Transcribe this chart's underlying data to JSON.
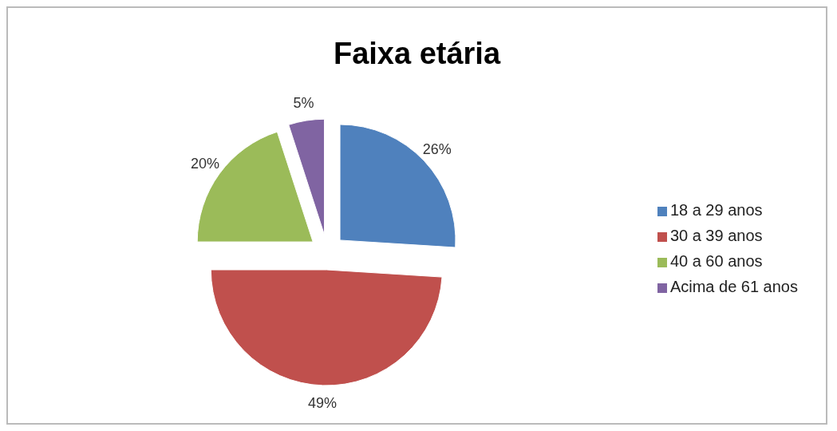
{
  "chart_data": {
    "type": "pie",
    "title": "Faixa etária",
    "categories": [
      "18 a 29 anos",
      "30 a 39 anos",
      "40 a 60 anos",
      "Acima de 61 anos"
    ],
    "values": [
      26,
      49,
      20,
      5
    ],
    "colors": [
      "#4f81bd",
      "#c0504d",
      "#9bbb59",
      "#8064a2"
    ],
    "value_labels": [
      "26%",
      "49%",
      "20%",
      "5%"
    ],
    "legend": "right"
  }
}
